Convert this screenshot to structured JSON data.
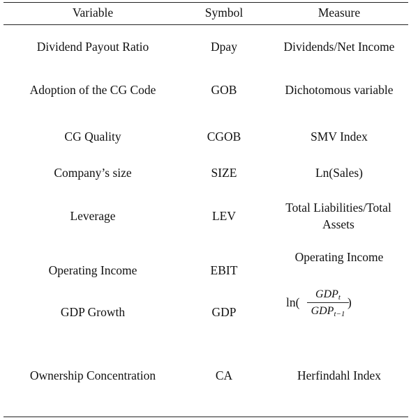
{
  "headers": {
    "variable": "Variable",
    "symbol": "Symbol",
    "measure": "Measure"
  },
  "rows": [
    {
      "variable": "Dividend Payout Ratio",
      "symbol": "Dpay",
      "measure": "Dividends/Net Income"
    },
    {
      "variable": "Adoption of the CG Code",
      "symbol": "GOB",
      "measure": "Dichotomous variable"
    },
    {
      "variable": "CG Quality",
      "symbol": "CGOB",
      "measure": "SMV Index"
    },
    {
      "variable": "Company’s size",
      "symbol": "SIZE",
      "measure": "Ln(Sales)"
    },
    {
      "variable": "Leverage",
      "symbol": "LEV",
      "measure": "Total Liabilities/Total Assets"
    },
    {
      "variable": "Operating Income",
      "symbol": "EBIT",
      "measure": "Operating Income"
    },
    {
      "variable": "GDP Growth",
      "symbol": "GDP",
      "measure": {
        "prefix": "ln(",
        "numerator_base": "GDP",
        "numerator_sub": "t",
        "denominator_base": "GDP",
        "denominator_sub": "t−1",
        "suffix": ")"
      }
    },
    {
      "variable": "Ownership Concentration",
      "symbol": "CA",
      "measure": "Herfindahl Index"
    }
  ]
}
